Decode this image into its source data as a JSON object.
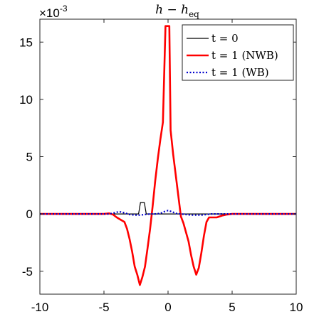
{
  "chart_data": {
    "type": "line",
    "title": "h − h_eq",
    "title_main": "h − h",
    "title_sub": "eq",
    "exponent_label": "×10",
    "exponent_power": "-3",
    "xlim": [
      -10,
      10
    ],
    "ylim": [
      -7,
      17
    ],
    "xticks": [
      -10,
      -5,
      0,
      5,
      10
    ],
    "yticks": [
      -5,
      0,
      5,
      10,
      15
    ],
    "grid": false,
    "legend_position": "top-right",
    "series": [
      {
        "name": "t = 0",
        "color": "#000000",
        "dash": "solid",
        "x": [
          -10,
          -2.3,
          -2.15,
          -1.85,
          -1.7,
          10
        ],
        "y": [
          0,
          0,
          1.0,
          1.0,
          0,
          0
        ]
      },
      {
        "name": "t = 1 (NWB)",
        "color": "#ff0000",
        "dash": "solid",
        "x": [
          -10,
          -5.0,
          -4.6,
          -4.3,
          -4.0,
          -3.7,
          -3.4,
          -3.2,
          -3.0,
          -2.8,
          -2.6,
          -2.4,
          -2.2,
          -2.0,
          -1.8,
          -1.6,
          -1.4,
          -1.2,
          -1.0,
          -0.8,
          -0.6,
          -0.4,
          -0.2,
          -0.1,
          0.1,
          0.2,
          0.4,
          0.6,
          0.8,
          1.0,
          1.2,
          1.4,
          1.6,
          1.8,
          2.0,
          2.2,
          2.4,
          2.6,
          2.8,
          3.0,
          3.2,
          3.5,
          3.8,
          4.2,
          4.6,
          5.0,
          10
        ],
        "y": [
          0,
          0,
          0.05,
          -0.05,
          -0.3,
          -0.5,
          -0.7,
          -1.3,
          -2.2,
          -3.3,
          -4.6,
          -5.3,
          -6.2,
          -5.5,
          -4.6,
          -3.0,
          -1.3,
          0.7,
          2.9,
          4.8,
          6.5,
          8.0,
          16.4,
          16.4,
          16.4,
          7.3,
          5.2,
          3.4,
          1.6,
          -0.2,
          -0.8,
          -1.6,
          -2.4,
          -3.6,
          -4.6,
          -5.3,
          -4.7,
          -3.4,
          -1.9,
          -0.7,
          -0.3,
          -0.3,
          -0.3,
          -0.15,
          -0.05,
          0,
          0
        ]
      },
      {
        "name": "t = 1 (WB)",
        "color": "#0000cc",
        "dash": "dotted",
        "x": [
          -10,
          -4.6,
          -4.2,
          -3.8,
          -3.4,
          -3.0,
          -2.6,
          -2.2,
          -1.8,
          -1.4,
          -1.0,
          -0.6,
          -0.3,
          0.0,
          0.3,
          0.6,
          1.0,
          1.4,
          1.8,
          2.2,
          2.6,
          3.0,
          3.4,
          3.8,
          4.2,
          10
        ],
        "y": [
          0,
          0,
          0.1,
          0.2,
          0.1,
          -0.05,
          -0.1,
          -0.1,
          -0.05,
          0,
          0,
          0.05,
          0.2,
          0.3,
          0.2,
          0.05,
          0,
          -0.05,
          -0.1,
          -0.1,
          -0.1,
          -0.05,
          0,
          0,
          0,
          0
        ]
      }
    ]
  }
}
